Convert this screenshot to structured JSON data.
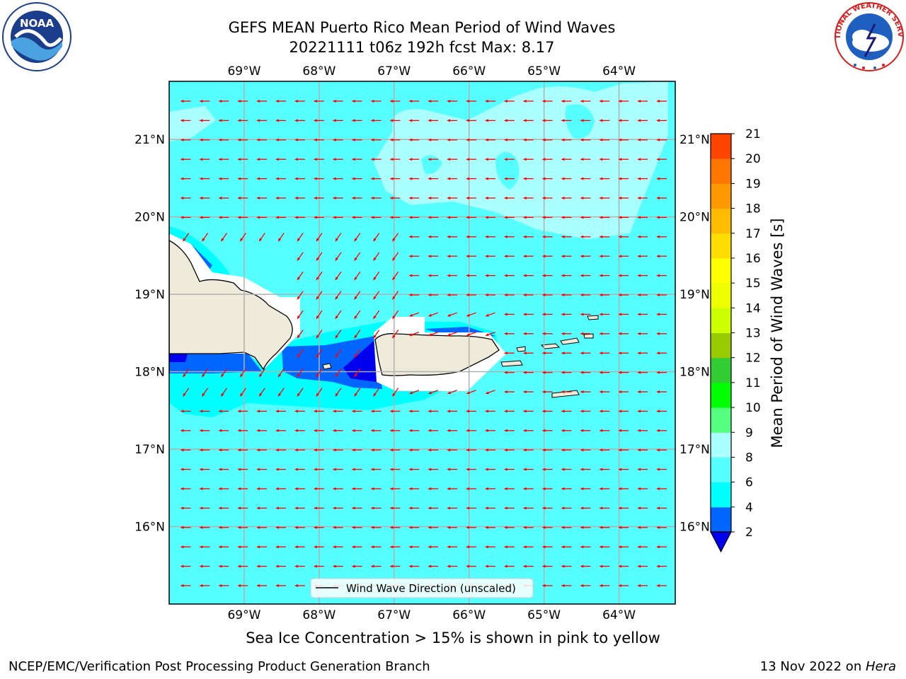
{
  "title": {
    "line1": "GEFS MEAN Puerto Rico Mean Period of Wind Waves",
    "line2": "20221111 t06z 192h fcst   Max: 8.17"
  },
  "map": {
    "lon_range": [
      -70.0,
      -63.25
    ],
    "lat_range": [
      15.0,
      21.75
    ],
    "lon_ticks": [
      -69,
      -68,
      -67,
      -66,
      -65,
      -64
    ],
    "lon_labels": [
      "69°W",
      "68°W",
      "67°W",
      "66°W",
      "65°W",
      "64°W"
    ],
    "lat_ticks": [
      16,
      17,
      18,
      19,
      20,
      21
    ],
    "lat_labels": [
      "16°N",
      "17°N",
      "18°N",
      "19°N",
      "20°N",
      "21°N"
    ],
    "gridlines": true,
    "ocean_color": "#55ffff",
    "land_color": "#efebdb",
    "vector_color": "#ff0000"
  },
  "legend": {
    "label": "Wind Wave Direction (unscaled)",
    "placement": "bottom-center"
  },
  "colorbar": {
    "label": "Mean Period of Wind Waves [s]",
    "ticks": [
      "2",
      "4",
      "6",
      "8",
      "9",
      "10",
      "11",
      "12",
      "13",
      "14",
      "15",
      "16",
      "17",
      "18",
      "19",
      "20",
      "21"
    ],
    "colors": [
      "#0066ff",
      "#00ffff",
      "#55ffff",
      "#aaffff",
      "#55ff7f",
      "#00ff00",
      "#33cc33",
      "#99cc00",
      "#ccff00",
      "#eeff00",
      "#ffff00",
      "#ffdd00",
      "#ffbb00",
      "#ff9900",
      "#ff7700",
      "#ff4400",
      "#ff0000"
    ],
    "extend_color": "#0000ee"
  },
  "subtitle": "Sea Ice Concentration > 15% is shown in pink to yellow",
  "footer": {
    "left": "NCEP/EMC/Verification Post Processing Product Generation Branch",
    "right_prefix": "13 Nov 2022 on ",
    "right_host": "Hera"
  },
  "logos": {
    "noaa_text": "NOAA",
    "nws_text": "NATIONAL WEATHER SERVICE"
  }
}
